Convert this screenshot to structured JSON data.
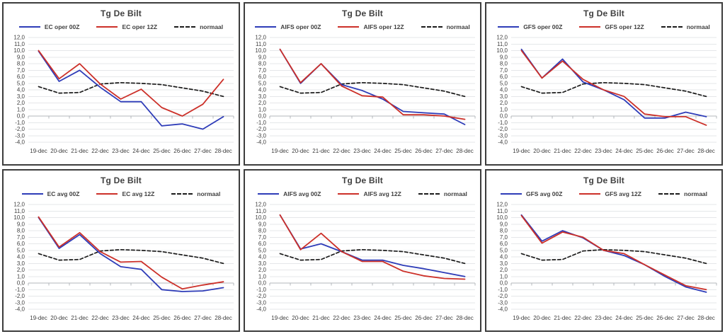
{
  "page": {
    "background": "#ffffff"
  },
  "colors": {
    "line_blue": "#2E3CB8",
    "line_red": "#CC3029",
    "line_normal": "#1B1B1B",
    "grid": "#E5E7E9",
    "axis": "#B3B7BB",
    "text": "#3F3F3F",
    "panel_border": "#3D3D3D"
  },
  "axis": {
    "ytick_labels": [
      "12,0",
      "11,0",
      "10,0",
      "9,0",
      "8,0",
      "7,0",
      "6,0",
      "5,0",
      "4,0",
      "3,0",
      "2,0",
      "1,0",
      "0,0",
      "-1,0",
      "-2,0",
      "-3,0",
      "-4,0"
    ],
    "yticks": [
      12,
      11,
      10,
      9,
      8,
      7,
      6,
      5,
      4,
      3,
      2,
      1,
      0,
      -1,
      -2,
      -3,
      -4
    ]
  },
  "chart_data": [
    {
      "type": "line",
      "title": "Tg De Bilt",
      "categories": [
        "19-dec",
        "20-dec",
        "21-dec",
        "22-dec",
        "23-dec",
        "24-dec",
        "25-dec",
        "26-dec",
        "27-dec",
        "28-dec"
      ],
      "ylim": [
        -4,
        12
      ],
      "ystep": 1,
      "grid": true,
      "legend_position": "top",
      "series": [
        {
          "name": "EC oper 00Z",
          "color": "#2E3CB8",
          "dash": "solid",
          "values": [
            9.9,
            5.3,
            7.0,
            4.4,
            2.2,
            2.2,
            -1.5,
            -1.2,
            -2.0,
            -0.1
          ]
        },
        {
          "name": "EC oper 12Z",
          "color": "#CC3029",
          "dash": "solid",
          "values": [
            10.0,
            5.7,
            8.0,
            4.9,
            2.6,
            4.1,
            1.3,
            0.0,
            1.8,
            5.6
          ]
        },
        {
          "name": "normaal",
          "color": "#1B1B1B",
          "dash": "dashed",
          "values": [
            4.5,
            3.5,
            3.6,
            4.9,
            5.1,
            5.0,
            4.8,
            4.3,
            3.8,
            3.0
          ]
        }
      ]
    },
    {
      "type": "line",
      "title": "Tg De Bilt",
      "categories": [
        "19-dec",
        "20-dec",
        "21-dec",
        "22-dec",
        "23-dec",
        "24-dec",
        "25-dec",
        "26-dec",
        "27-dec",
        "28-dec"
      ],
      "ylim": [
        -4,
        12
      ],
      "ystep": 1,
      "grid": true,
      "legend_position": "top",
      "series": [
        {
          "name": "AIFS oper 00Z",
          "color": "#2E3CB8",
          "dash": "solid",
          "values": [
            10.2,
            5.0,
            8.0,
            4.8,
            3.9,
            2.6,
            0.7,
            0.5,
            0.3,
            -1.3
          ]
        },
        {
          "name": "AIFS oper 12Z",
          "color": "#CC3029",
          "dash": "solid",
          "values": [
            10.2,
            5.1,
            8.0,
            4.6,
            3.1,
            2.9,
            0.2,
            0.2,
            0.0,
            -0.5
          ]
        },
        {
          "name": "normaal",
          "color": "#1B1B1B",
          "dash": "dashed",
          "values": [
            4.5,
            3.5,
            3.6,
            4.9,
            5.1,
            5.0,
            4.8,
            4.3,
            3.8,
            3.0
          ]
        }
      ]
    },
    {
      "type": "line",
      "title": "Tg De Bilt",
      "categories": [
        "19-dec",
        "20-dec",
        "21-dec",
        "22-dec",
        "23-dec",
        "24-dec",
        "25-dec",
        "26-dec",
        "27-dec",
        "28-dec"
      ],
      "ylim": [
        -4,
        12
      ],
      "ystep": 1,
      "grid": true,
      "legend_position": "top",
      "series": [
        {
          "name": "GFS oper 00Z",
          "color": "#2E3CB8",
          "dash": "solid",
          "values": [
            10.2,
            5.8,
            8.7,
            5.2,
            4.0,
            2.5,
            -0.3,
            -0.3,
            0.6,
            -0.1
          ]
        },
        {
          "name": "GFS oper 12Z",
          "color": "#CC3029",
          "dash": "solid",
          "values": [
            10.0,
            5.8,
            8.4,
            5.6,
            4.0,
            3.0,
            0.3,
            -0.1,
            -0.1,
            -1.4
          ]
        },
        {
          "name": "normaal",
          "color": "#1B1B1B",
          "dash": "dashed",
          "values": [
            4.5,
            3.5,
            3.6,
            4.9,
            5.1,
            5.0,
            4.8,
            4.3,
            3.8,
            3.0
          ]
        }
      ]
    },
    {
      "type": "line",
      "title": "Tg De Bilt",
      "categories": [
        "19-dec",
        "20-dec",
        "21-dec",
        "22-dec",
        "23-dec",
        "24-dec",
        "25-dec",
        "26-dec",
        "27-dec",
        "28-dec"
      ],
      "ylim": [
        -4,
        12
      ],
      "ystep": 1,
      "grid": true,
      "legend_position": "top",
      "series": [
        {
          "name": "EC avg 00Z",
          "color": "#2E3CB8",
          "dash": "solid",
          "values": [
            10.0,
            5.3,
            7.4,
            4.5,
            2.5,
            2.1,
            -1.0,
            -1.3,
            -1.2,
            -0.7
          ]
        },
        {
          "name": "EC avg 12Z",
          "color": "#CC3029",
          "dash": "solid",
          "values": [
            10.1,
            5.5,
            7.7,
            4.8,
            3.2,
            3.3,
            0.9,
            -0.9,
            -0.3,
            0.2
          ]
        },
        {
          "name": "normaal",
          "color": "#1B1B1B",
          "dash": "dashed",
          "values": [
            4.5,
            3.5,
            3.6,
            4.9,
            5.1,
            5.0,
            4.8,
            4.3,
            3.8,
            3.0
          ]
        }
      ]
    },
    {
      "type": "line",
      "title": "Tg De Bilt",
      "categories": [
        "19-dec",
        "20-dec",
        "21-dec",
        "22-dec",
        "23-dec",
        "24-dec",
        "25-dec",
        "26-dec",
        "27-dec",
        "28-dec"
      ],
      "ylim": [
        -4,
        12
      ],
      "ystep": 1,
      "grid": true,
      "legend_position": "top",
      "series": [
        {
          "name": "AIFS avg 00Z",
          "color": "#2E3CB8",
          "dash": "solid",
          "values": [
            10.4,
            5.2,
            6.0,
            4.8,
            3.5,
            3.5,
            2.7,
            2.2,
            1.6,
            1.0
          ]
        },
        {
          "name": "AIFS avg 12Z",
          "color": "#CC3029",
          "dash": "solid",
          "values": [
            10.4,
            5.1,
            7.6,
            4.8,
            3.3,
            3.3,
            1.8,
            1.1,
            0.7,
            0.6
          ]
        },
        {
          "name": "normaal",
          "color": "#1B1B1B",
          "dash": "dashed",
          "values": [
            4.5,
            3.5,
            3.6,
            4.9,
            5.1,
            5.0,
            4.8,
            4.3,
            3.8,
            3.0
          ]
        }
      ]
    },
    {
      "type": "line",
      "title": "Tg De Bilt",
      "categories": [
        "19-dec",
        "20-dec",
        "21-dec",
        "22-dec",
        "23-dec",
        "24-dec",
        "25-dec",
        "26-dec",
        "27-dec",
        "28-dec"
      ],
      "ylim": [
        -4,
        12
      ],
      "ystep": 1,
      "grid": true,
      "legend_position": "top",
      "series": [
        {
          "name": "GFS avg 00Z",
          "color": "#2E3CB8",
          "dash": "solid",
          "values": [
            10.4,
            6.4,
            8.0,
            6.9,
            5.0,
            4.2,
            2.8,
            1.0,
            -0.6,
            -1.4
          ]
        },
        {
          "name": "GFS avg 12Z",
          "color": "#CC3029",
          "dash": "solid",
          "values": [
            10.3,
            6.1,
            7.8,
            7.0,
            5.0,
            4.5,
            2.8,
            1.2,
            -0.4,
            -1.0
          ]
        },
        {
          "name": "normaal",
          "color": "#1B1B1B",
          "dash": "dashed",
          "values": [
            4.5,
            3.5,
            3.6,
            4.9,
            5.1,
            5.0,
            4.8,
            4.3,
            3.8,
            3.0
          ]
        }
      ]
    }
  ]
}
